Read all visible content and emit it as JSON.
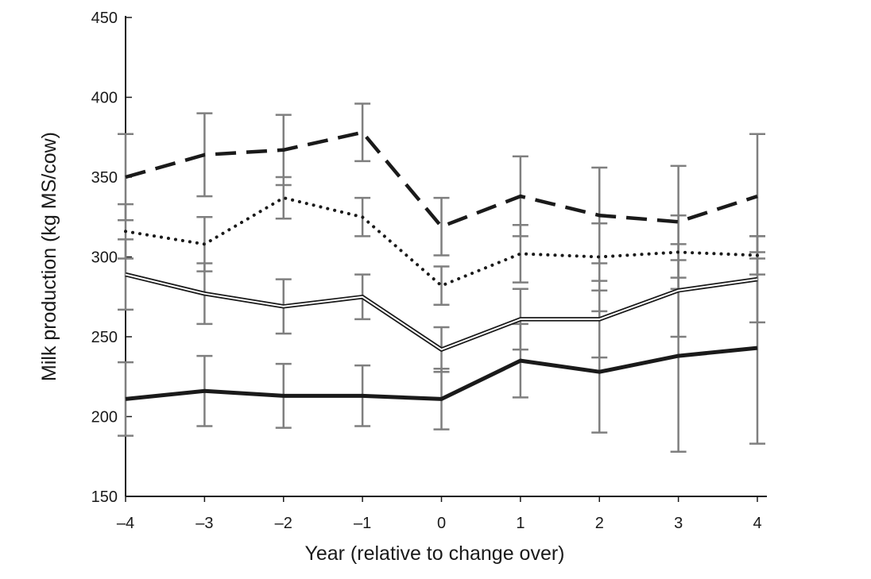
{
  "chart_data": {
    "type": "line",
    "title": "",
    "xlabel": "Year (relative to change over)",
    "ylabel": "Milk production (kg MS/cow)",
    "ylim": [
      150,
      450
    ],
    "xlim": [
      -4,
      4
    ],
    "grid": false,
    "x": [
      -4,
      -3,
      -2,
      -1,
      0,
      1,
      2,
      3,
      4
    ],
    "x_tick_labels": [
      "–4",
      "–3",
      "–2",
      "–1",
      "0",
      "1",
      "2",
      "3",
      "4"
    ],
    "y_ticks": [
      150,
      200,
      250,
      300,
      350,
      400,
      450
    ],
    "y_tick_labels": [
      "150",
      "200",
      "250",
      "300",
      "350",
      "400",
      "450"
    ],
    "series": [
      {
        "style": "dashed",
        "values": [
          350,
          364,
          367,
          378,
          319,
          338,
          326,
          322,
          338
        ],
        "errors": [
          27,
          26,
          22,
          18,
          18,
          25,
          30,
          35,
          39
        ],
        "color": "#1a1a1a"
      },
      {
        "style": "dotted",
        "values": [
          316,
          308,
          337,
          325,
          282,
          302,
          300,
          303,
          301
        ],
        "errors": [
          17,
          17,
          13,
          12,
          12,
          18,
          21,
          23,
          12
        ],
        "color": "#1a1a1a"
      },
      {
        "style": "double",
        "values": [
          289,
          277,
          269,
          275,
          242,
          261,
          261,
          279,
          286
        ],
        "errors": [
          22,
          19,
          17,
          14,
          14,
          19,
          24,
          29,
          27
        ],
        "color": "#1a1a1a"
      },
      {
        "style": "solid",
        "values": [
          211,
          216,
          213,
          213,
          211,
          235,
          228,
          238,
          243
        ],
        "errors": [
          23,
          22,
          20,
          19,
          19,
          23,
          38,
          60,
          60
        ],
        "color": "#1a1a1a"
      }
    ],
    "errorbar_color": "#7f7f7f"
  }
}
